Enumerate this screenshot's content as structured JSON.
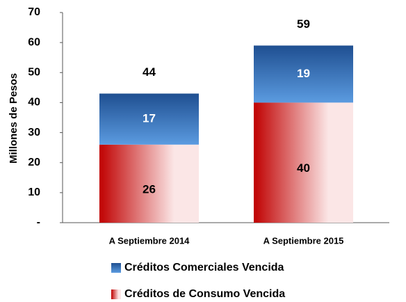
{
  "chart_data": {
    "type": "stacked_bar",
    "y_label": "Millones de Pesos",
    "categories": [
      "A Septiembre 2014",
      "A Septiembre 2015"
    ],
    "series": [
      {
        "name": "Créditos de Consumo Vencida",
        "color": "#c00000",
        "values": [
          26,
          40
        ]
      },
      {
        "name": "Créditos Comerciales Vencida",
        "color": "#1f4f91",
        "values": [
          17,
          19
        ]
      }
    ],
    "totals": [
      44,
      59
    ],
    "ylim": [
      0,
      70
    ],
    "yticks": [
      {
        "value": 0,
        "label": "-"
      },
      10,
      20,
      30,
      40,
      50,
      60,
      70
    ]
  }
}
